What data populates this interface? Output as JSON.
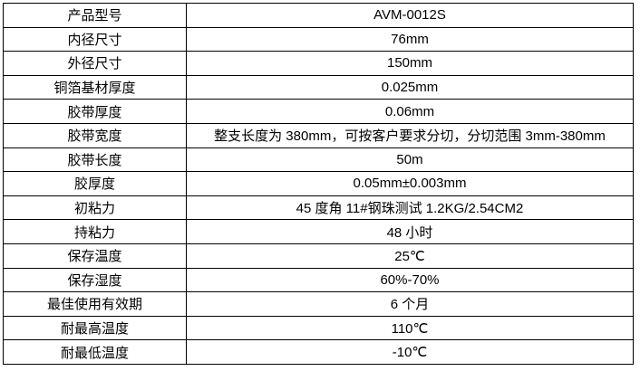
{
  "colors": {
    "border": "#000000",
    "background": "#ffffff",
    "text": "#000000"
  },
  "table": {
    "rows": [
      {
        "label": "产品型号",
        "value": "AVM-0012S"
      },
      {
        "label": "内径尺寸",
        "value": "76mm"
      },
      {
        "label": "外径尺寸",
        "value": "150mm"
      },
      {
        "label": "铜箔基材厚度",
        "value": "0.025mm"
      },
      {
        "label": "胶带厚度",
        "value": "0.06mm"
      },
      {
        "label": "胶带宽度",
        "value": "整支长度为 380mm，可按客户要求分切，分切范围 3mm-380mm"
      },
      {
        "label": "胶带长度",
        "value": "50m"
      },
      {
        "label": "胶厚度",
        "value": "0.05mm±0.003mm"
      },
      {
        "label": "初粘力",
        "value": "45 度角 11#钢珠测试 1.2KG/2.54CM2"
      },
      {
        "label": "持粘力",
        "value": "48 小时"
      },
      {
        "label": "保存温度",
        "value": "25℃"
      },
      {
        "label": "保存湿度",
        "value": "60%-70%"
      },
      {
        "label": "最佳使用有效期",
        "value": "6 个月"
      },
      {
        "label": "耐最高温度",
        "value": "110℃"
      },
      {
        "label": "耐最低温度",
        "value": "-10℃"
      }
    ]
  }
}
